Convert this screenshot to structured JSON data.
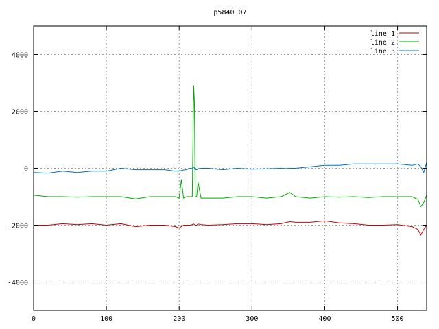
{
  "chart_data": {
    "type": "line",
    "title": "p5840_07",
    "xlabel": "",
    "ylabel": "",
    "xlim": [
      0,
      540
    ],
    "ylim": [
      -5000,
      5000
    ],
    "x_ticks": [
      0,
      100,
      200,
      300,
      400,
      500
    ],
    "y_ticks": [
      -4000,
      -2000,
      0,
      2000,
      4000
    ],
    "x_tick_labels": [
      "0",
      "100",
      "200",
      "300",
      "400",
      "500"
    ],
    "y_tick_labels": [
      "-4000",
      "-2000",
      "0",
      "2000",
      "4000"
    ],
    "grid": true,
    "legend_position": "top-right",
    "x": [
      0,
      20,
      40,
      60,
      80,
      100,
      120,
      140,
      160,
      180,
      195,
      200,
      203,
      206,
      210,
      215,
      218,
      220,
      221,
      222,
      224,
      226,
      230,
      240,
      260,
      280,
      300,
      320,
      340,
      348,
      352,
      360,
      380,
      400,
      420,
      440,
      460,
      480,
      500,
      520,
      528,
      532,
      536,
      540
    ],
    "series": [
      {
        "name": "line 1",
        "color": "#cc0000",
        "values": [
          -2000,
          -2000,
          -1950,
          -1980,
          -1950,
          -2000,
          -1950,
          -2050,
          -2000,
          -2000,
          -2050,
          -2100,
          -2050,
          -2000,
          -2000,
          -2000,
          -1980,
          -1960,
          -1980,
          -2000,
          -2000,
          -1960,
          -1980,
          -2000,
          -1980,
          -1950,
          -1950,
          -1980,
          -1950,
          -1900,
          -1880,
          -1900,
          -1900,
          -1850,
          -1920,
          -1950,
          -2000,
          -2000,
          -1980,
          -2050,
          -2150,
          -2350,
          -2150,
          -2000
        ]
      },
      {
        "name": "line 2",
        "color": "#00aa00",
        "values": [
          -950,
          -1000,
          -1000,
          -1020,
          -1000,
          -1000,
          -1000,
          -1080,
          -1000,
          -1000,
          -1000,
          -1050,
          -400,
          -1050,
          -1000,
          -1000,
          -1000,
          2900,
          2300,
          -1000,
          -1000,
          -500,
          -1050,
          -1050,
          -1050,
          -1000,
          -1000,
          -1050,
          -1000,
          -900,
          -850,
          -1000,
          -1050,
          -1000,
          -1020,
          -1000,
          -1030,
          -1000,
          -1000,
          -1000,
          -1100,
          -1350,
          -1200,
          -950
        ]
      },
      {
        "name": "line 3",
        "color": "#0072bd",
        "values": [
          -150,
          -170,
          -100,
          -150,
          -100,
          -100,
          0,
          -50,
          -50,
          -50,
          -100,
          -100,
          -80,
          -60,
          -50,
          0,
          -20,
          50,
          0,
          -50,
          -50,
          -30,
          0,
          0,
          -50,
          0,
          -30,
          -20,
          0,
          -10,
          0,
          0,
          50,
          100,
          100,
          150,
          150,
          150,
          150,
          100,
          150,
          50,
          -150,
          200
        ]
      }
    ]
  }
}
